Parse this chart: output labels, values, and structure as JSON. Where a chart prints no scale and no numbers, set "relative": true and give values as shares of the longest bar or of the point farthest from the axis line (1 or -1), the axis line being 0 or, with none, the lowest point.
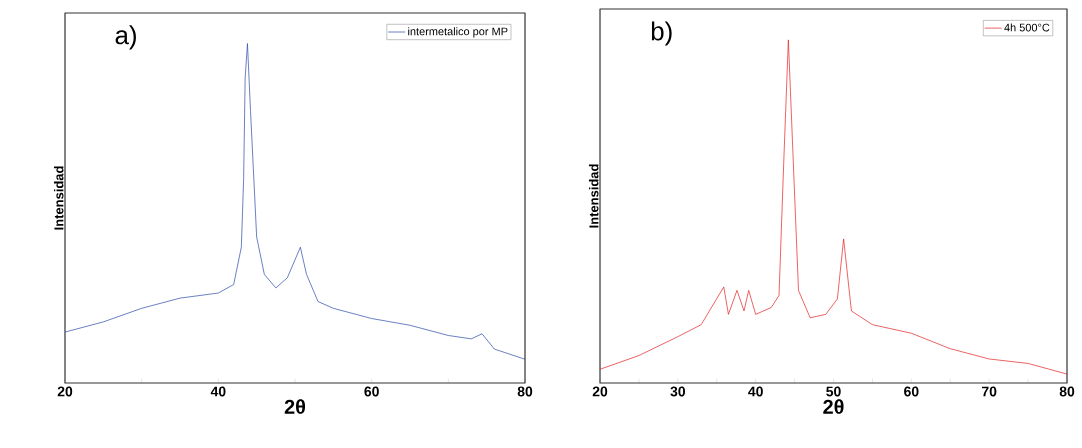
{
  "chart_data": [
    {
      "type": "line",
      "title": "a)",
      "xlabel": "2θ",
      "ylabel": "Intensidad",
      "relative": true,
      "legend": "top right",
      "xlim": [
        20,
        80
      ],
      "xticks": [
        20,
        {
          "value": 30,
          "label": null
        },
        40,
        {
          "value": 50,
          "label": null
        },
        60,
        {
          "value": 70,
          "label": null
        },
        80
      ],
      "series": [
        {
          "name": "intermetalico por MP",
          "color": "#2a4aa8",
          "x": [
            20,
            25,
            30,
            35,
            40,
            42,
            43,
            43.3,
            43.5,
            43.8,
            44.2,
            45,
            46,
            47.5,
            49,
            50.7,
            51.5,
            53,
            55,
            60,
            65,
            70,
            73,
            74.4,
            76,
            80
          ],
          "values": [
            0.15,
            0.18,
            0.22,
            0.25,
            0.265,
            0.29,
            0.4,
            0.6,
            0.9,
            1.0,
            0.8,
            0.43,
            0.32,
            0.28,
            0.31,
            0.4,
            0.32,
            0.24,
            0.22,
            0.19,
            0.17,
            0.14,
            0.13,
            0.145,
            0.1,
            0.07
          ]
        }
      ]
    },
    {
      "type": "line",
      "title": "b)",
      "xlabel": "2θ",
      "ylabel": "Intensidad",
      "relative": true,
      "legend": "top right",
      "xlim": [
        20,
        80
      ],
      "xticks": [
        20,
        {
          "value": 25,
          "label": null
        },
        30,
        {
          "value": 35,
          "label": null
        },
        40,
        {
          "value": 45,
          "label": null
        },
        50,
        {
          "value": 55,
          "label": null
        },
        60,
        {
          "value": 65,
          "label": null
        },
        70,
        {
          "value": 75,
          "label": null
        },
        80
      ],
      "series": [
        {
          "name": "4h 500°C",
          "color": "#e52020",
          "x": [
            20,
            25,
            30,
            33,
            35.9,
            36.5,
            37.6,
            38.5,
            39.1,
            40,
            42,
            43,
            43.6,
            44.2,
            45.5,
            47,
            49,
            50.5,
            51.3,
            52.3,
            55,
            60,
            65,
            70,
            75,
            80
          ],
          "values": [
            0.04,
            0.08,
            0.135,
            0.17,
            0.28,
            0.2,
            0.27,
            0.21,
            0.27,
            0.2,
            0.22,
            0.255,
            0.64,
            1.0,
            0.27,
            0.19,
            0.2,
            0.245,
            0.42,
            0.21,
            0.17,
            0.145,
            0.1,
            0.07,
            0.057,
            0.026
          ]
        }
      ]
    }
  ]
}
